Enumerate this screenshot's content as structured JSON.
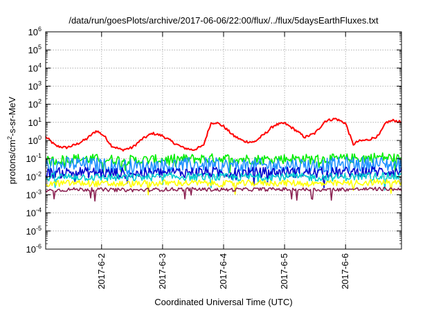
{
  "chart_data": {
    "type": "line",
    "title": "/data/run/goesPlots/archive/2017-06-06/22:00/flux/../flux/5daysEarthFluxes.txt",
    "xlabel": "Coordinated Universal Time (UTC)",
    "ylabel": "protons/cm²-s-sr-MeV",
    "yscale": "log",
    "ylim": [
      1e-06,
      1000000.0
    ],
    "xlim": [
      "2017-06-01 02:00",
      "2017-06-06 22:00"
    ],
    "x_ticks": [
      "2017-6-2",
      "2017-6-3",
      "2017-6-4",
      "2017-6-5",
      "2017-6-6"
    ],
    "y_tick_exponents": [
      -6,
      -5,
      -4,
      -3,
      -2,
      -1,
      0,
      1,
      2,
      3,
      4,
      5,
      6
    ],
    "grid": true,
    "series": [
      {
        "color": "#ff0000",
        "x": [
          "2017-06-01 02:00",
          "2017-06-01 06:00",
          "2017-06-01 10:00",
          "2017-06-01 14:00",
          "2017-06-01 18:00",
          "2017-06-01 22:00",
          "2017-06-02 01:00",
          "2017-06-02 04:00",
          "2017-06-02 08:00",
          "2017-06-02 12:00",
          "2017-06-02 16:00",
          "2017-06-02 20:00",
          "2017-06-03 00:00",
          "2017-06-03 04:00",
          "2017-06-03 08:00",
          "2017-06-03 12:00",
          "2017-06-03 16:00",
          "2017-06-03 19:00",
          "2017-06-03 21:00",
          "2017-06-04 00:00",
          "2017-06-04 04:00",
          "2017-06-04 08:00",
          "2017-06-04 12:00",
          "2017-06-04 16:00",
          "2017-06-04 20:00",
          "2017-06-05 00:00",
          "2017-06-05 04:00",
          "2017-06-05 08:00",
          "2017-06-05 12:00",
          "2017-06-05 16:00",
          "2017-06-05 20:00",
          "2017-06-06 00:00",
          "2017-06-06 03:00",
          "2017-06-06 05:00",
          "2017-06-06 09:00",
          "2017-06-06 13:00",
          "2017-06-06 16:00",
          "2017-06-06 19:00",
          "2017-06-06 22:00"
        ],
        "y": [
          1.6,
          0.5,
          0.4,
          0.6,
          1.2,
          3.5,
          1.8,
          0.5,
          0.3,
          0.4,
          1.2,
          2.5,
          1.8,
          0.8,
          0.4,
          0.3,
          0.5,
          9,
          10,
          6,
          1.8,
          0.9,
          0.8,
          2.2,
          7,
          9,
          4,
          1.5,
          2.5,
          12,
          16,
          9,
          0.6,
          0.9,
          1.1,
          1.8,
          10,
          13,
          10
        ]
      },
      {
        "color": "#00ee00",
        "x": [
          "2017-06-01 02:00",
          "2017-06-01 14:00",
          "2017-06-02 02:00",
          "2017-06-02 14:00",
          "2017-06-03 02:00",
          "2017-06-03 14:00",
          "2017-06-04 02:00",
          "2017-06-04 14:00",
          "2017-06-05 02:00",
          "2017-06-05 14:00",
          "2017-06-06 02:00",
          "2017-06-06 14:00",
          "2017-06-06 22:00"
        ],
        "y": [
          0.07,
          0.1,
          0.09,
          0.08,
          0.09,
          0.1,
          0.1,
          0.09,
          0.1,
          0.09,
          0.1,
          0.12,
          0.1
        ]
      },
      {
        "color": "#1e90ff",
        "x": [
          "2017-06-01 02:00",
          "2017-06-01 14:00",
          "2017-06-02 02:00",
          "2017-06-02 14:00",
          "2017-06-03 02:00",
          "2017-06-03 14:00",
          "2017-06-04 02:00",
          "2017-06-04 14:00",
          "2017-06-05 02:00",
          "2017-06-05 14:00",
          "2017-06-06 02:00",
          "2017-06-06 14:00",
          "2017-06-06 22:00"
        ],
        "y": [
          0.04,
          0.05,
          0.04,
          0.035,
          0.04,
          0.045,
          0.04,
          0.04,
          0.045,
          0.04,
          0.05,
          0.05,
          0.045
        ]
      },
      {
        "color": "#0000cd",
        "x": [
          "2017-06-01 02:00",
          "2017-06-01 14:00",
          "2017-06-02 02:00",
          "2017-06-02 14:00",
          "2017-06-03 02:00",
          "2017-06-03 14:00",
          "2017-06-04 02:00",
          "2017-06-04 14:00",
          "2017-06-05 02:00",
          "2017-06-05 14:00",
          "2017-06-06 02:00",
          "2017-06-06 14:00",
          "2017-06-06 22:00"
        ],
        "y": [
          0.015,
          0.018,
          0.016,
          0.015,
          0.017,
          0.018,
          0.016,
          0.017,
          0.018,
          0.016,
          0.018,
          0.02,
          0.018
        ]
      },
      {
        "color": "#00ced1",
        "x": [
          "2017-06-01 02:00",
          "2017-06-01 14:00",
          "2017-06-02 02:00",
          "2017-06-02 14:00",
          "2017-06-03 02:00",
          "2017-06-03 14:00",
          "2017-06-04 02:00",
          "2017-06-04 14:00",
          "2017-06-05 02:00",
          "2017-06-05 14:00",
          "2017-06-06 02:00",
          "2017-06-06 14:00",
          "2017-06-06 22:00"
        ],
        "y": [
          0.009,
          0.01,
          0.009,
          0.009,
          0.01,
          0.01,
          0.009,
          0.01,
          0.01,
          0.009,
          0.01,
          0.011,
          0.01
        ]
      },
      {
        "color": "#ffff00",
        "x": [
          "2017-06-01 02:00",
          "2017-06-01 14:00",
          "2017-06-02 02:00",
          "2017-06-02 14:00",
          "2017-06-03 02:00",
          "2017-06-03 14:00",
          "2017-06-04 02:00",
          "2017-06-04 14:00",
          "2017-06-05 02:00",
          "2017-06-05 14:00",
          "2017-06-06 02:00",
          "2017-06-06 14:00",
          "2017-06-06 22:00"
        ],
        "y": [
          0.004,
          0.0045,
          0.004,
          0.004,
          0.0045,
          0.0045,
          0.004,
          0.0045,
          0.0045,
          0.004,
          0.0045,
          0.005,
          0.0045
        ]
      },
      {
        "color": "#8b2252",
        "x": [
          "2017-06-01 02:00",
          "2017-06-01 14:00",
          "2017-06-02 02:00",
          "2017-06-02 14:00",
          "2017-06-03 02:00",
          "2017-06-03 14:00",
          "2017-06-04 02:00",
          "2017-06-04 14:00",
          "2017-06-05 02:00",
          "2017-06-05 14:00",
          "2017-06-06 02:00",
          "2017-06-06 14:00",
          "2017-06-06 22:00"
        ],
        "y": [
          0.0017,
          0.002,
          0.0019,
          0.0018,
          0.002,
          0.002,
          0.0019,
          0.002,
          0.002,
          0.0019,
          0.002,
          0.0021,
          0.002
        ]
      }
    ]
  }
}
